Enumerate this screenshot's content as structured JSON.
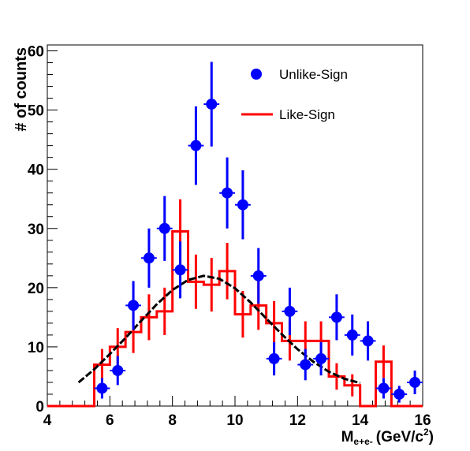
{
  "chart_data": {
    "type": "scatter",
    "title": "",
    "xlabel": {
      "main": "M",
      "sub": "e+e-",
      "unit_prefix": "(GeV/c",
      "unit_sup": "2",
      "unit_suffix": ")"
    },
    "ylabel": "# of counts",
    "xlim": [
      4,
      16
    ],
    "ylim": [
      0,
      61
    ],
    "x_ticks": [
      "4",
      "6",
      "8",
      "10",
      "12",
      "14",
      "16"
    ],
    "y_ticks": [
      "0",
      "10",
      "20",
      "30",
      "40",
      "50",
      "60"
    ],
    "grid": false,
    "legend_position": "top-right",
    "series": [
      {
        "name": "Unlike-Sign",
        "style": "points-with-error-bars",
        "color": "#0000ff",
        "bin_width": 0.5,
        "x": [
          5.75,
          6.25,
          6.75,
          7.25,
          7.75,
          8.25,
          8.75,
          9.25,
          9.75,
          10.25,
          10.75,
          11.25,
          11.75,
          12.25,
          12.75,
          13.25,
          13.75,
          14.25,
          14.75,
          15.25,
          15.75
        ],
        "y": [
          3,
          6,
          17,
          25,
          30,
          23,
          44,
          51,
          36,
          34,
          22,
          8,
          16,
          7,
          8,
          15,
          12,
          11,
          3,
          2,
          4
        ]
      },
      {
        "name": "Like-Sign",
        "style": "step-histogram-with-error-bars",
        "color": "#ff0000",
        "bin_edges": [
          4,
          4.5,
          5,
          5.5,
          6,
          6.5,
          7,
          7.5,
          8,
          8.5,
          9,
          9.5,
          10,
          10.5,
          11,
          11.5,
          12,
          12.5,
          13,
          13.5,
          14,
          14.5,
          15,
          15.5,
          16
        ],
        "values": [
          0,
          0,
          0,
          7,
          10,
          12.5,
          15,
          16,
          29.5,
          21,
          20.5,
          22.8,
          15.5,
          17,
          14,
          11,
          11,
          11,
          5,
          3.5,
          0,
          7.5,
          0,
          0
        ]
      },
      {
        "name": "",
        "style": "fit-curve",
        "color": "#000000",
        "x": [
          5.0,
          5.5,
          6.0,
          6.5,
          7.0,
          7.5,
          8.0,
          8.5,
          9.0,
          9.5,
          10.0,
          10.5,
          11.0,
          11.5,
          12.0,
          12.5,
          13.0,
          13.5,
          14.0
        ],
        "y": [
          4,
          6.2,
          8.8,
          11.5,
          14.4,
          17.2,
          19.6,
          21.3,
          22,
          21.5,
          19.9,
          17.5,
          14.8,
          12.1,
          9.6,
          7.5,
          5.8,
          4.6,
          3.9
        ]
      }
    ],
    "legend": {
      "unlike_label": "Unlike-Sign",
      "like_label": "Like-Sign"
    }
  }
}
